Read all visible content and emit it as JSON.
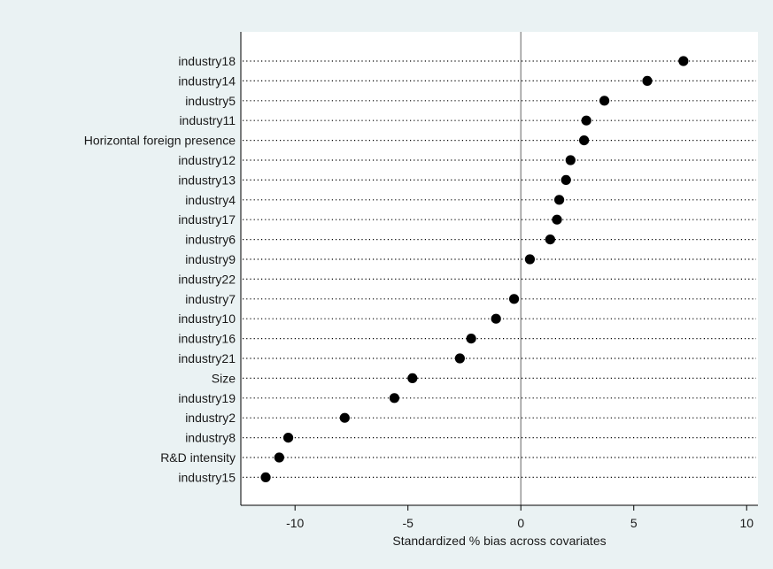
{
  "chart_data": {
    "type": "scatter",
    "title": "",
    "xlabel": "Standardized % bias across covariates",
    "ylabel": "",
    "xlim": [
      -12.4,
      10.5
    ],
    "xticks": [
      -10,
      -5,
      0,
      5,
      10
    ],
    "xtick_labels": [
      "-10",
      "-5",
      "0",
      "5",
      "10"
    ],
    "reference_line_x": 0,
    "grid": "dotted horizontal guide per covariate",
    "colors": {
      "background": "#eaf2f3",
      "plot_area": "#ffffff",
      "marker": "#000000"
    },
    "categories": [
      "industry18",
      "industry14",
      "industry5",
      "industry11",
      "Horizontal foreign presence",
      "industry12",
      "industry13",
      "industry4",
      "industry17",
      "industry6",
      "industry9",
      "industry22",
      "industry7",
      "industry10",
      "industry16",
      "industry21",
      "Size",
      "industry19",
      "industry2",
      "industry8",
      "R&D intensity",
      "industry15"
    ],
    "values": [
      7.2,
      5.6,
      3.7,
      2.9,
      2.8,
      2.2,
      2.0,
      1.7,
      1.6,
      1.3,
      0.4,
      null,
      -0.3,
      -1.1,
      -2.2,
      -2.7,
      -4.8,
      -5.6,
      -7.8,
      -10.3,
      -10.7,
      -11.3
    ]
  }
}
